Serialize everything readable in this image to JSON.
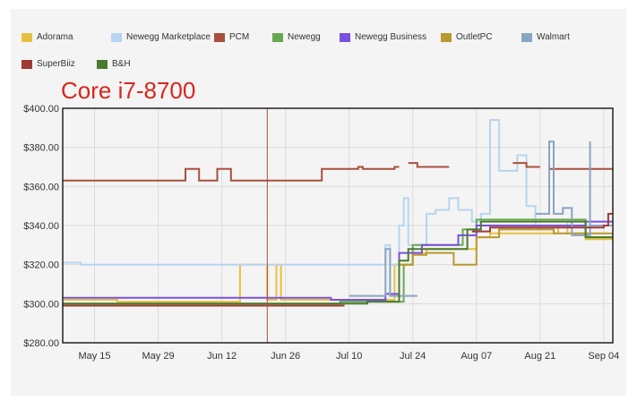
{
  "chart_data": {
    "type": "line",
    "title": "Core i7-8700",
    "xlabel": "",
    "ylabel": "",
    "ylim": [
      280,
      400
    ],
    "xlim": [
      "2018-05-08",
      "2018-09-06"
    ],
    "grid": true,
    "legend_position": "top",
    "y_ticks": [
      "$280.00",
      "$300.00",
      "$320.00",
      "$340.00",
      "$360.00",
      "$380.00",
      "$400.00"
    ],
    "y_tick_values": [
      280,
      300,
      320,
      340,
      360,
      380,
      400
    ],
    "x_ticks": [
      "May 15",
      "May 29",
      "Jun 12",
      "Jun 26",
      "Jul 10",
      "Jul 24",
      "Aug 07",
      "Aug 21",
      "Sep 04"
    ],
    "x_tick_dates": [
      "2018-05-15",
      "2018-05-29",
      "2018-06-12",
      "2018-06-26",
      "2018-07-10",
      "2018-07-24",
      "2018-08-07",
      "2018-08-21",
      "2018-09-04"
    ],
    "marker_date": "2018-06-22",
    "series": [
      {
        "name": "Adorama",
        "color": "#e8c040",
        "points": [
          [
            "2018-05-08",
            302
          ],
          [
            "2018-05-20",
            302
          ],
          [
            "2018-05-20",
            301
          ],
          [
            "2018-06-12",
            301
          ],
          [
            "2018-06-16",
            301
          ],
          [
            "2018-06-16",
            320
          ],
          [
            "2018-06-22",
            320
          ],
          [
            "2018-06-22",
            302
          ],
          [
            "2018-06-24",
            302
          ],
          [
            "2018-06-24",
            320
          ],
          [
            "2018-06-25",
            320
          ],
          [
            "2018-06-25",
            302
          ],
          [
            "2018-07-20",
            302
          ],
          [
            "2018-07-20",
            320
          ],
          [
            "2018-07-24",
            320
          ],
          [
            "2018-07-24",
            326
          ],
          [
            "2018-07-27",
            326
          ],
          [
            "2018-07-27",
            328
          ],
          [
            "2018-08-07",
            328
          ],
          [
            "2018-08-07",
            334
          ],
          [
            "2018-08-10",
            334
          ],
          [
            "2018-08-10",
            336
          ],
          [
            "2018-08-25",
            336
          ],
          [
            "2018-08-25",
            340
          ],
          [
            "2018-08-27",
            340
          ],
          [
            "2018-08-27",
            336
          ],
          [
            "2018-08-31",
            336
          ],
          [
            "2018-08-31",
            333
          ],
          [
            "2018-09-06",
            333
          ]
        ]
      },
      {
        "name": "Newegg Marketplace",
        "color": "#b8d4ee",
        "points": [
          [
            "2018-05-08",
            321
          ],
          [
            "2018-05-12",
            321
          ],
          [
            "2018-05-12",
            320
          ],
          [
            "2018-07-18",
            320
          ],
          [
            "2018-07-18",
            330
          ],
          [
            "2018-07-19",
            330
          ],
          [
            "2018-07-19",
            320
          ],
          [
            "2018-07-21",
            320
          ],
          [
            "2018-07-21",
            340
          ],
          [
            "2018-07-22",
            340
          ],
          [
            "2018-07-22",
            354
          ],
          [
            "2018-07-23",
            354
          ],
          [
            "2018-07-23",
            330
          ],
          [
            "2018-07-27",
            330
          ],
          [
            "2018-07-27",
            346
          ],
          [
            "2018-07-29",
            346
          ],
          [
            "2018-07-29",
            348
          ],
          [
            "2018-08-01",
            348
          ],
          [
            "2018-08-01",
            354
          ],
          [
            "2018-08-03",
            354
          ],
          [
            "2018-08-03",
            348
          ],
          [
            "2018-08-06",
            348
          ],
          [
            "2018-08-06",
            342
          ],
          [
            "2018-08-08",
            342
          ],
          [
            "2018-08-08",
            346
          ],
          [
            "2018-08-10",
            346
          ],
          [
            "2018-08-10",
            394
          ],
          [
            "2018-08-12",
            394
          ],
          [
            "2018-08-12",
            368
          ],
          [
            "2018-08-16",
            368
          ],
          [
            "2018-08-16",
            376
          ],
          [
            "2018-08-18",
            376
          ],
          [
            "2018-08-18",
            350
          ],
          [
            "2018-08-20",
            350
          ],
          [
            "2018-08-20",
            340
          ],
          [
            "2018-08-27",
            340
          ],
          [
            "2018-08-27",
            342
          ],
          [
            "2018-08-31",
            342
          ],
          [
            "2018-08-31",
            340
          ],
          [
            "2018-09-06",
            340
          ]
        ]
      },
      {
        "name": "PCM",
        "color": "#a84f3e",
        "points": [
          [
            "2018-05-08",
            363
          ],
          [
            "2018-05-28",
            363
          ],
          [
            "2018-06-04",
            363
          ],
          [
            "2018-06-04",
            369
          ],
          [
            "2018-06-07",
            369
          ],
          [
            "2018-06-07",
            363
          ],
          [
            "2018-06-11",
            363
          ],
          [
            "2018-06-11",
            369
          ],
          [
            "2018-06-14",
            369
          ],
          [
            "2018-06-14",
            363
          ],
          [
            "2018-07-04",
            363
          ],
          [
            "2018-07-04",
            369
          ],
          [
            "2018-07-12",
            369
          ],
          [
            "2018-07-12",
            370
          ],
          [
            "2018-07-13",
            370
          ],
          [
            "2018-07-13",
            369
          ],
          [
            "2018-07-20",
            369
          ],
          [
            "2018-07-20",
            370
          ],
          [
            "2018-07-21",
            370
          ],
          [
            "2018-07-23",
            null
          ],
          [
            "2018-07-23",
            372
          ],
          [
            "2018-07-25",
            372
          ],
          [
            "2018-07-25",
            370
          ],
          [
            "2018-08-01",
            370
          ],
          [
            "2018-08-03",
            null
          ],
          [
            "2018-08-15",
            null
          ],
          [
            "2018-08-15",
            372
          ],
          [
            "2018-08-18",
            372
          ],
          [
            "2018-08-18",
            370
          ],
          [
            "2018-08-21",
            370
          ],
          [
            "2018-08-23",
            null
          ],
          [
            "2018-08-23",
            369
          ],
          [
            "2018-09-06",
            369
          ]
        ]
      },
      {
        "name": "Newegg",
        "color": "#6aa84f",
        "points": [
          [
            "2018-05-08",
            300
          ],
          [
            "2018-07-08",
            300
          ],
          [
            "2018-07-08",
            301
          ],
          [
            "2018-07-22",
            301
          ],
          [
            "2018-07-22",
            320
          ],
          [
            "2018-07-24",
            320
          ],
          [
            "2018-07-24",
            330
          ],
          [
            "2018-08-04",
            330
          ],
          [
            "2018-08-04",
            338
          ],
          [
            "2018-08-07",
            338
          ],
          [
            "2018-08-07",
            343
          ],
          [
            "2018-08-31",
            343
          ],
          [
            "2018-08-31",
            334
          ],
          [
            "2018-09-06",
            334
          ]
        ]
      },
      {
        "name": "Newegg Business",
        "color": "#7b4fe0",
        "points": [
          [
            "2018-05-08",
            303
          ],
          [
            "2018-07-06",
            303
          ],
          [
            "2018-07-06",
            302
          ],
          [
            "2018-07-18",
            302
          ],
          [
            "2018-07-18",
            305
          ],
          [
            "2018-07-21",
            305
          ],
          [
            "2018-07-21",
            326
          ],
          [
            "2018-07-26",
            326
          ],
          [
            "2018-07-26",
            330
          ],
          [
            "2018-08-03",
            330
          ],
          [
            "2018-08-03",
            335
          ],
          [
            "2018-08-07",
            335
          ],
          [
            "2018-08-07",
            340
          ],
          [
            "2018-08-31",
            340
          ],
          [
            "2018-08-31",
            342
          ],
          [
            "2018-09-06",
            342
          ]
        ]
      },
      {
        "name": "OutletPC",
        "color": "#b89a2e",
        "points": [
          [
            "2018-07-21",
            320
          ],
          [
            "2018-07-24",
            320
          ],
          [
            "2018-07-24",
            325
          ],
          [
            "2018-07-27",
            325
          ],
          [
            "2018-07-27",
            326
          ],
          [
            "2018-08-02",
            326
          ],
          [
            "2018-08-02",
            320
          ],
          [
            "2018-08-07",
            320
          ],
          [
            "2018-08-07",
            334
          ],
          [
            "2018-08-12",
            334
          ],
          [
            "2018-08-12",
            338
          ],
          [
            "2018-08-24",
            338
          ],
          [
            "2018-08-24",
            336
          ],
          [
            "2018-09-06",
            336
          ]
        ]
      },
      {
        "name": "Walmart",
        "color": "#8aa4c4",
        "points": [
          [
            "2018-07-10",
            304
          ],
          [
            "2018-07-18",
            304
          ],
          [
            "2018-07-18",
            328
          ],
          [
            "2018-07-19",
            328
          ],
          [
            "2018-07-19",
            304
          ],
          [
            "2018-07-25",
            304
          ],
          [
            "2018-08-20",
            null
          ],
          [
            "2018-08-20",
            346
          ],
          [
            "2018-08-23",
            346
          ],
          [
            "2018-08-23",
            383
          ],
          [
            "2018-08-24",
            383
          ],
          [
            "2018-08-24",
            346
          ],
          [
            "2018-08-26",
            346
          ],
          [
            "2018-08-26",
            349
          ],
          [
            "2018-08-28",
            349
          ],
          [
            "2018-08-28",
            335
          ],
          [
            "2018-09-01",
            335
          ],
          [
            "2018-09-01",
            383
          ],
          [
            "2018-09-01",
            340
          ],
          [
            "2018-09-06",
            340
          ]
        ]
      },
      {
        "name": "SuperBiiz",
        "color": "#9e3a32",
        "points": [
          [
            "2018-05-08",
            299
          ],
          [
            "2018-07-09",
            299
          ],
          [
            "2018-08-06",
            null
          ],
          [
            "2018-08-06",
            337
          ],
          [
            "2018-08-10",
            337
          ],
          [
            "2018-08-10",
            339
          ],
          [
            "2018-09-04",
            339
          ],
          [
            "2018-09-04",
            340
          ],
          [
            "2018-09-05",
            340
          ],
          [
            "2018-09-05",
            346
          ],
          [
            "2018-09-06",
            346
          ]
        ]
      },
      {
        "name": "B&H",
        "color": "#4a7a2e",
        "points": [
          [
            "2018-05-08",
            300
          ],
          [
            "2018-07-14",
            300
          ],
          [
            "2018-07-14",
            301
          ],
          [
            "2018-07-21",
            301
          ],
          [
            "2018-07-21",
            322
          ],
          [
            "2018-07-23",
            322
          ],
          [
            "2018-07-23",
            328
          ],
          [
            "2018-08-05",
            328
          ],
          [
            "2018-08-05",
            338
          ],
          [
            "2018-08-08",
            338
          ],
          [
            "2018-08-08",
            342
          ],
          [
            "2018-08-31",
            342
          ],
          [
            "2018-08-31",
            334
          ],
          [
            "2018-09-06",
            334
          ]
        ]
      }
    ]
  }
}
